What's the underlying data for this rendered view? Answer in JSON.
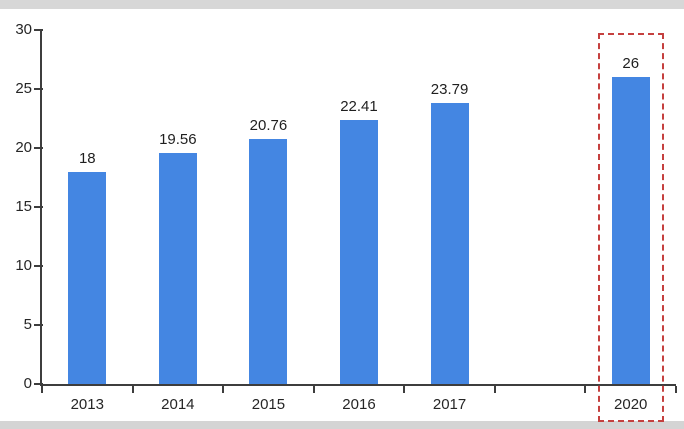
{
  "chart_data": {
    "type": "bar",
    "title": "",
    "xlabel": "",
    "ylabel": "",
    "categories": [
      "2013",
      "2014",
      "2015",
      "2016",
      "2017",
      "",
      "2020"
    ],
    "values": [
      18,
      19.56,
      20.76,
      22.41,
      23.79,
      null,
      26
    ],
    "value_labels": [
      "18",
      "19.56",
      "20.76",
      "22.41",
      "23.79",
      "",
      "26"
    ],
    "ylim": [
      0,
      30
    ],
    "yticks": [
      0,
      5,
      10,
      15,
      20,
      25,
      30
    ],
    "grid": false,
    "legend": null,
    "bar_color": "#4486e2",
    "axis_color": "#3d3d3d",
    "text_color": "#262626",
    "highlight": {
      "category": "2020",
      "style": "red-dashed-box",
      "color": "#c5403f"
    }
  }
}
